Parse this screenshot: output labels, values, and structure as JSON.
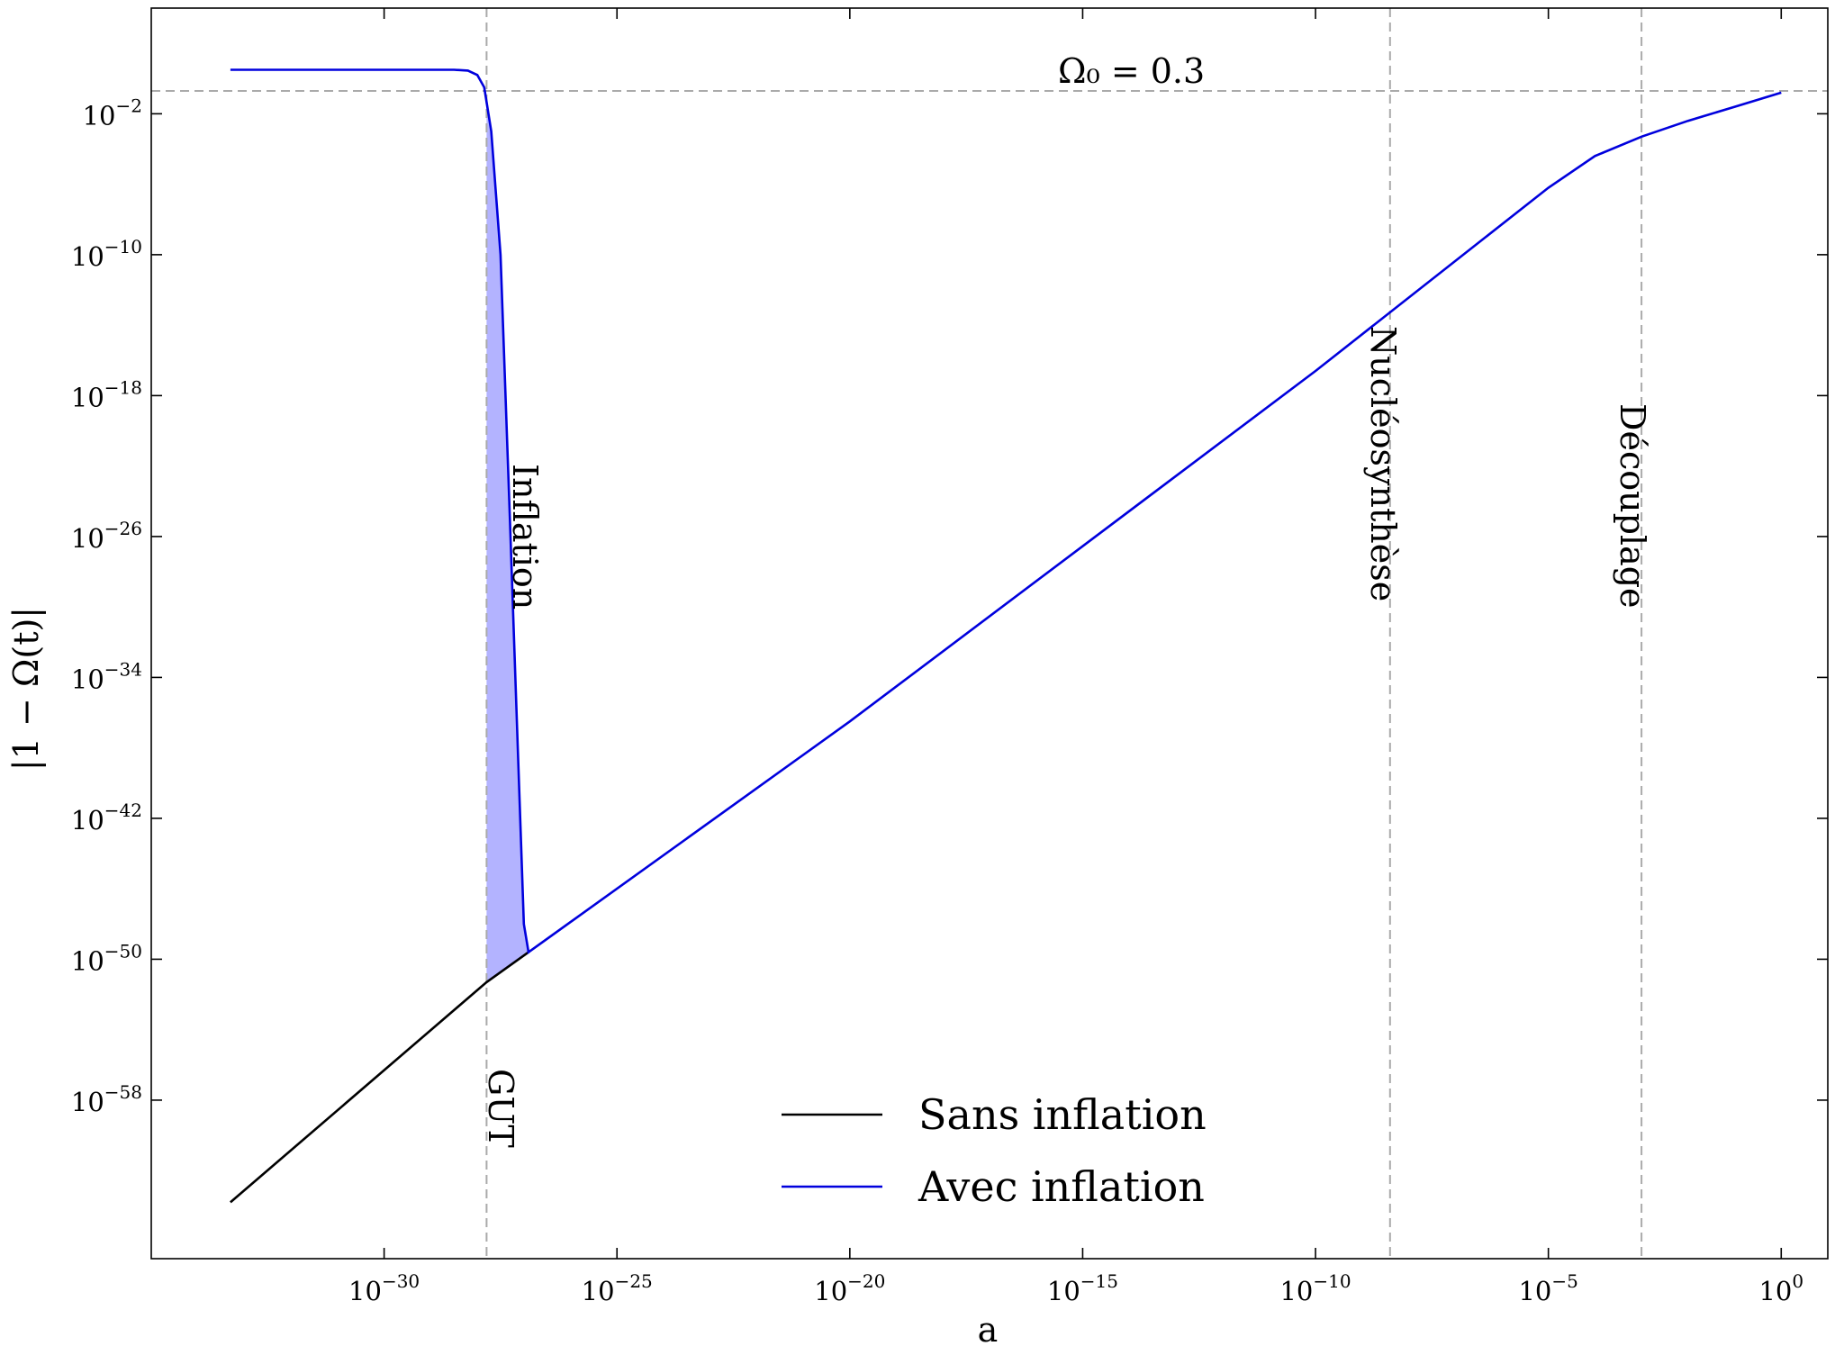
{
  "chart_data": {
    "type": "line",
    "xscale": "log",
    "yscale": "log",
    "xlim": [
      "1e-35",
      "1e1"
    ],
    "ylim": [
      "1e-67",
      "1e4"
    ],
    "xlabel": "a",
    "ylabel": "|1 − Ω(t)|",
    "x_ticks": [
      {
        "base": "10",
        "exp": "−30",
        "value": -30
      },
      {
        "base": "10",
        "exp": "−25",
        "value": -25
      },
      {
        "base": "10",
        "exp": "−20",
        "value": -20
      },
      {
        "base": "10",
        "exp": "−15",
        "value": -15
      },
      {
        "base": "10",
        "exp": "−10",
        "value": -10
      },
      {
        "base": "10",
        "exp": "−5",
        "value": -5
      },
      {
        "base": "10",
        "exp": "0",
        "value": 0
      }
    ],
    "y_ticks": [
      {
        "base": "10",
        "exp": "−2",
        "value": -2
      },
      {
        "base": "10",
        "exp": "−10",
        "value": -10
      },
      {
        "base": "10",
        "exp": "−18",
        "value": -18
      },
      {
        "base": "10",
        "exp": "−26",
        "value": -26
      },
      {
        "base": "10",
        "exp": "−34",
        "value": -34
      },
      {
        "base": "10",
        "exp": "−42",
        "value": -42
      },
      {
        "base": "10",
        "exp": "−50",
        "value": -50
      },
      {
        "base": "10",
        "exp": "−58",
        "value": -58
      }
    ],
    "series": [
      {
        "name": "Sans inflation",
        "color": "#000000",
        "log10_x": [
          -33.3,
          -27.8,
          -26.9
        ],
        "log10_y": [
          -63.8,
          -51.3,
          -49.6
        ]
      },
      {
        "name": "Avec inflation",
        "color": "#0000dd",
        "log10_x": [
          -33.3,
          -28.5,
          -28.2,
          -28.0,
          -27.85,
          -27.7,
          -27.5,
          -27.3,
          -27.0,
          -26.9,
          -20.0,
          -10.0,
          -5.0,
          -4.0,
          -3.0,
          -2.0,
          -1.0,
          0.0
        ],
        "log10_y": [
          0.5,
          0.5,
          0.45,
          0.2,
          -0.5,
          -3.0,
          -10.0,
          -25.0,
          -48.0,
          -49.6,
          -36.5,
          -16.6,
          -6.2,
          -4.4,
          -3.3,
          -2.4,
          -1.6,
          -0.8
        ]
      }
    ],
    "shaded_region": {
      "name": "Inflation",
      "color": "#b3b3ff",
      "log10_x_range": [
        -27.8,
        -26.9
      ]
    },
    "reference_lines": {
      "horizontal": {
        "label": "Ω₀ = 0.3",
        "log10_y": -0.7
      },
      "vertical": [
        {
          "label": "GUT",
          "log10_x": -27.8
        },
        {
          "label": "Nucléosynthèse",
          "log10_x": -8.4
        },
        {
          "label": "Découplage",
          "log10_x": -3.0
        }
      ]
    },
    "annotations": {
      "omega": "Ω₀ = 0.3",
      "inflation": "Inflation",
      "gut": "GUT",
      "nucleo": "Nucléosynthèse",
      "decouplage": "Découplage"
    },
    "legend": {
      "position": "bottom-center",
      "items": [
        "Sans inflation",
        "Avec inflation"
      ]
    },
    "grid": false
  }
}
